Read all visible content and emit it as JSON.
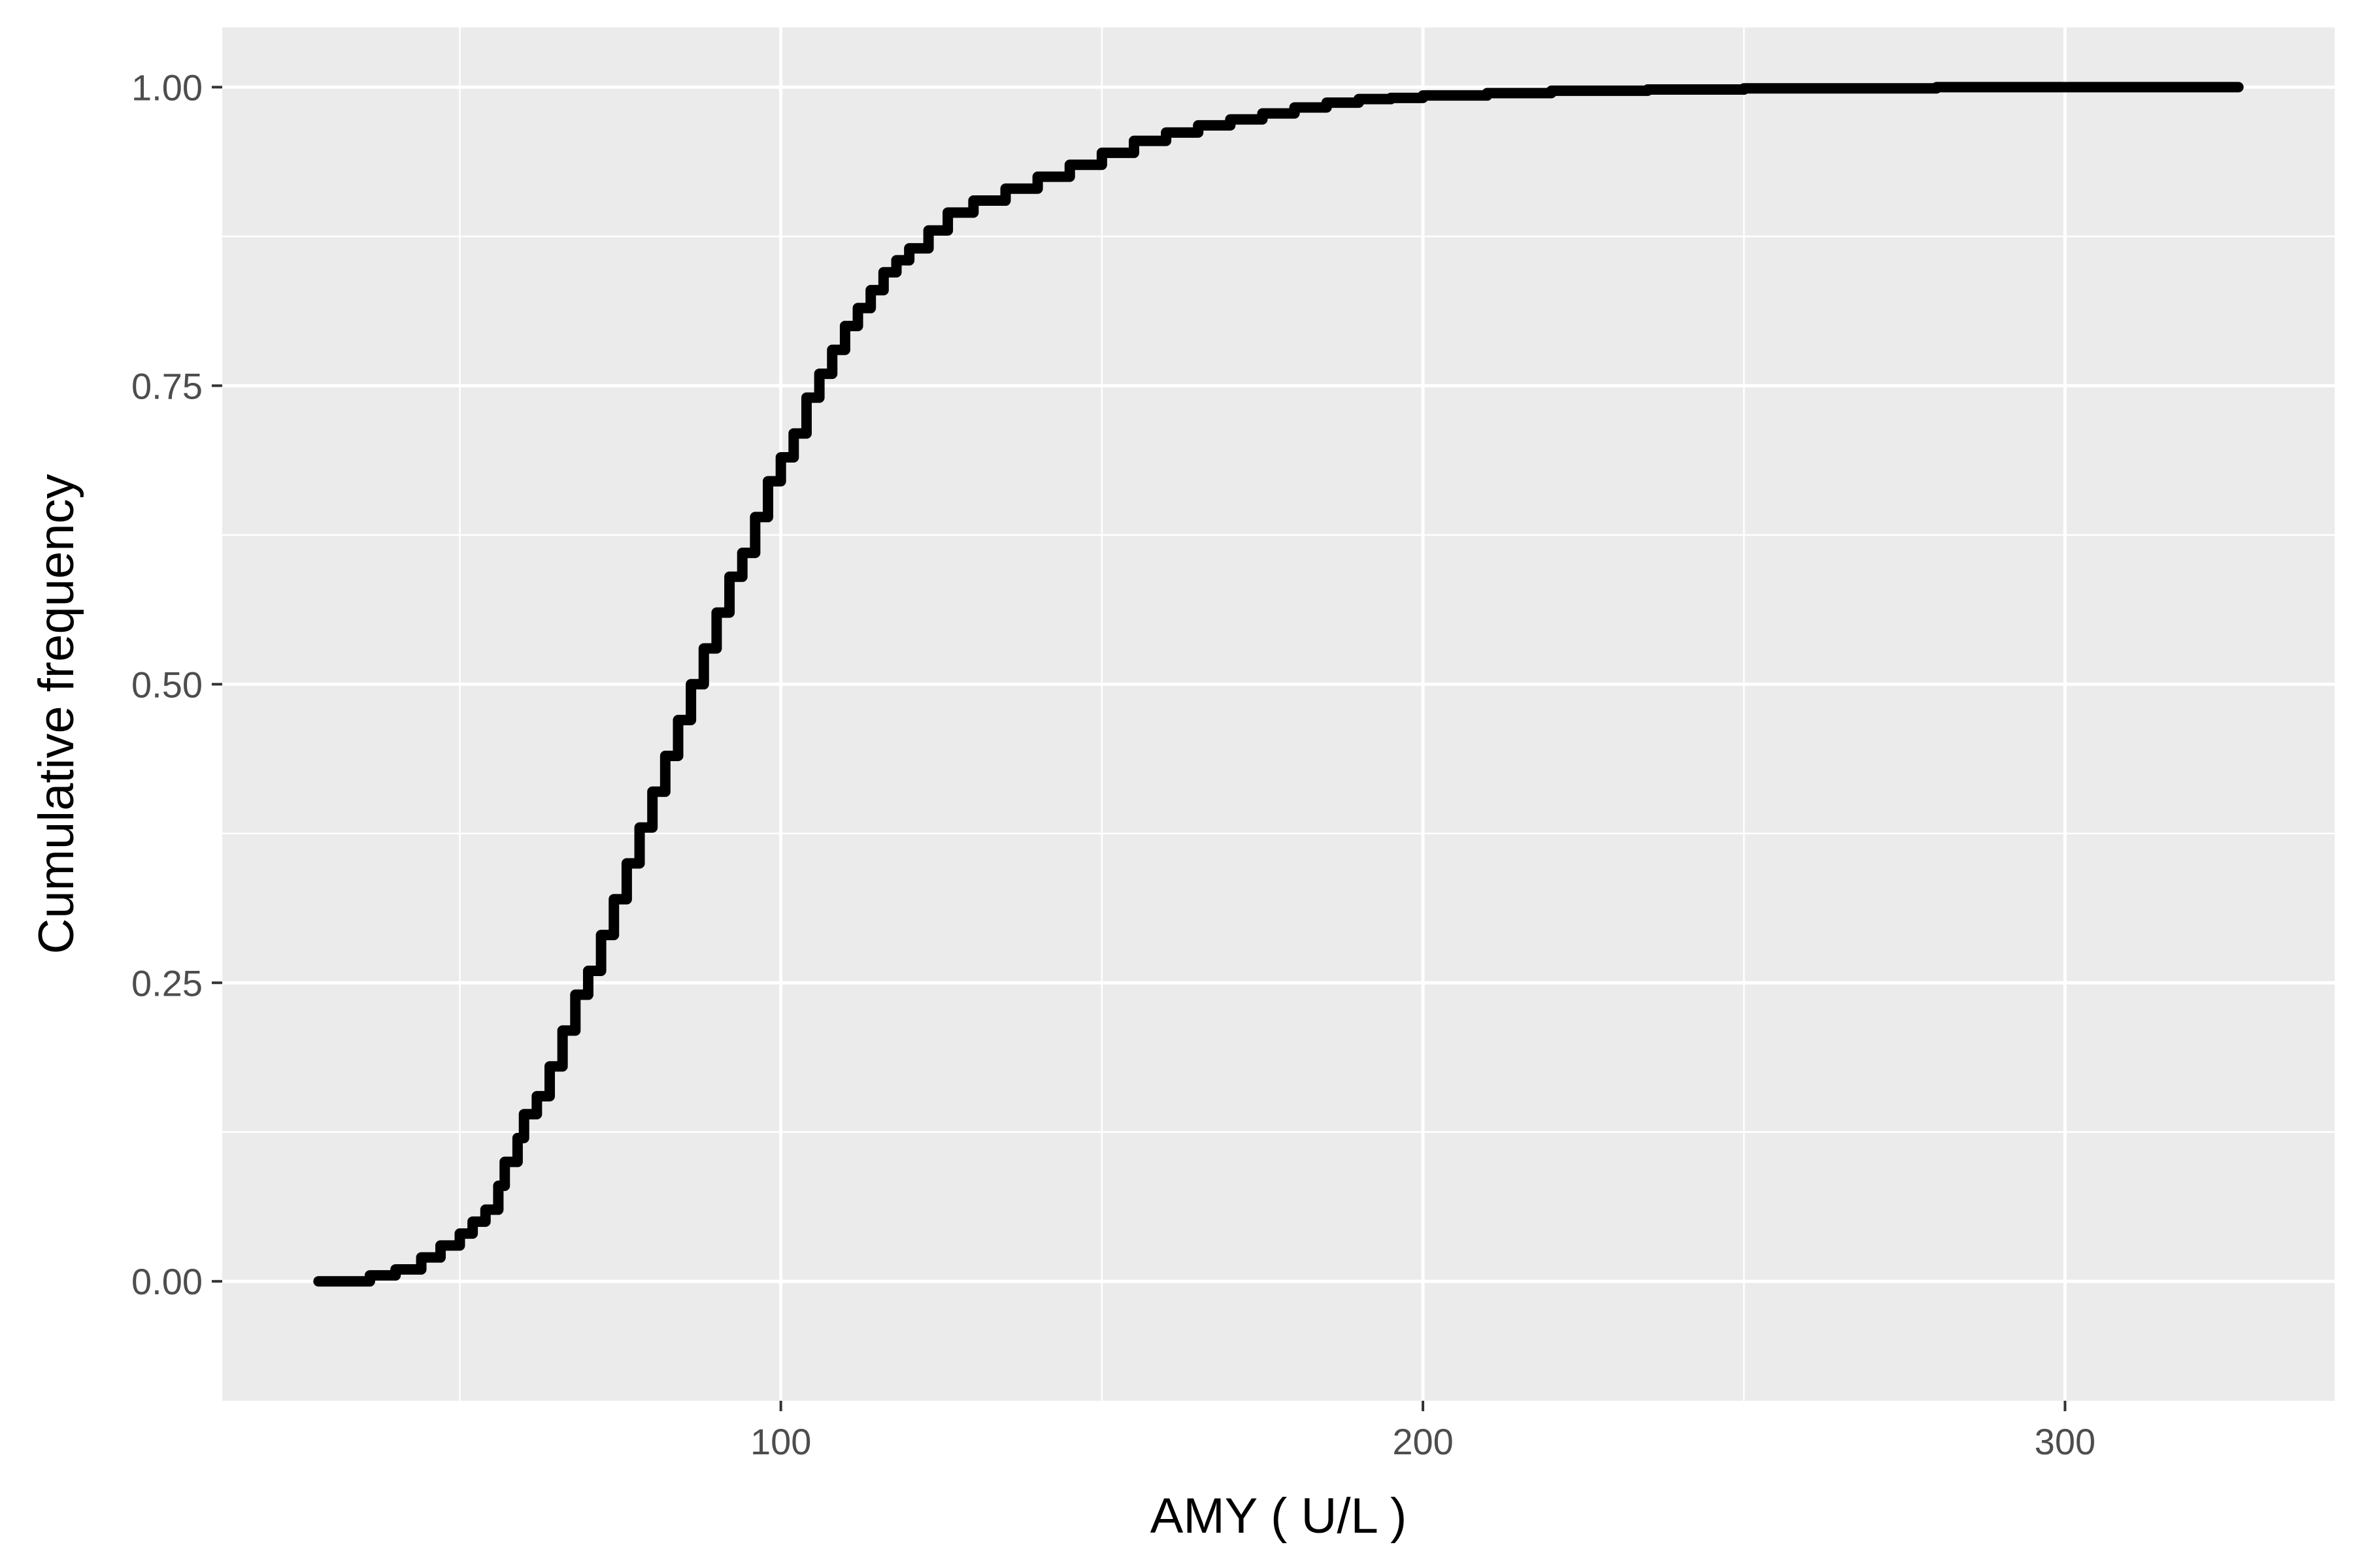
{
  "chart_data": {
    "type": "line",
    "subtype": "ecdf-step",
    "title": "",
    "xlabel": "AMY ( U/L )",
    "ylabel": "Cumulative frequency",
    "xlim": [
      13,
      342
    ],
    "ylim": [
      -0.1,
      1.05
    ],
    "xticks": [
      100,
      200,
      300
    ],
    "xtick_labels": [
      "100",
      "200",
      "300"
    ],
    "yticks": [
      0,
      0.25,
      0.5,
      0.75,
      1.0
    ],
    "ytick_labels": [
      "0.00",
      "0.25",
      "0.50",
      "0.75",
      "1.00"
    ],
    "grid": true,
    "legend": "none",
    "colors": {
      "panel": "#ebebeb",
      "grid": "#ffffff",
      "line": "#000000",
      "tick_text": "#4d4d4d",
      "tick_mark": "#333333"
    },
    "series": [
      {
        "x": [
          28,
          36,
          40,
          44,
          47,
          50,
          52,
          54,
          56,
          57,
          59,
          60,
          62,
          64,
          66,
          68,
          70,
          72,
          74,
          76,
          78,
          80,
          82,
          84,
          86,
          88,
          90,
          92,
          94,
          96,
          98,
          100,
          102,
          104,
          106,
          108,
          110,
          112,
          114,
          116,
          118,
          120,
          123,
          126,
          130,
          135,
          140,
          145,
          150,
          155,
          160,
          165,
          170,
          175,
          180,
          185,
          190,
          195,
          200,
          210,
          220,
          235,
          250,
          280,
          300,
          327
        ],
        "y": [
          0.0,
          0.005,
          0.01,
          0.02,
          0.03,
          0.04,
          0.05,
          0.06,
          0.08,
          0.1,
          0.12,
          0.14,
          0.155,
          0.18,
          0.21,
          0.24,
          0.26,
          0.29,
          0.32,
          0.35,
          0.38,
          0.41,
          0.44,
          0.47,
          0.5,
          0.53,
          0.56,
          0.59,
          0.61,
          0.64,
          0.67,
          0.69,
          0.71,
          0.74,
          0.76,
          0.78,
          0.8,
          0.815,
          0.83,
          0.845,
          0.855,
          0.865,
          0.88,
          0.895,
          0.905,
          0.915,
          0.925,
          0.935,
          0.945,
          0.955,
          0.962,
          0.968,
          0.973,
          0.978,
          0.983,
          0.987,
          0.99,
          0.991,
          0.993,
          0.995,
          0.997,
          0.998,
          0.999,
          1.0,
          1.0,
          1.0
        ]
      }
    ]
  }
}
